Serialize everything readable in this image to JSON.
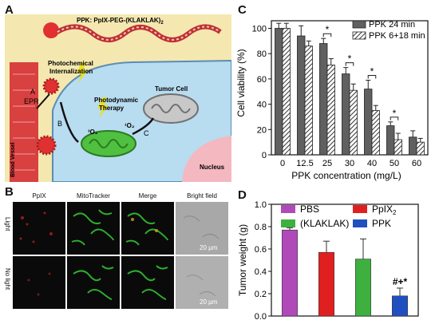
{
  "panelA": {
    "letter": "A",
    "ppk_label": "PPK: PpIX-PEG-(KLAKLAK)",
    "ppk_sub": "2",
    "photochem_1": "Photochemical",
    "photochem_2": "Internalization",
    "blood_vessel": "Blood Vessel",
    "epr": "EPR",
    "step_a": "A",
    "step_b": "B",
    "step_c": "C",
    "pdt_1": "Photodynamic",
    "pdt_2": "Therapy",
    "tumor_cell": "Tumor Cell",
    "nucleus": "Nucleus",
    "o2_triplet": "³O₂",
    "o2_singlet": "¹O₂",
    "colors": {
      "cell": "#b8dcf0",
      "vessel": "#d94040",
      "nucleus": "#f4b8c0",
      "background": "#f4e8b0"
    }
  },
  "panelB": {
    "letter": "B",
    "columns": [
      "PpIX",
      "MitoTracker",
      "Merge",
      "Bright field"
    ],
    "rows": [
      "Light",
      "No light"
    ],
    "scale_bar": "20 μm"
  },
  "panelC": {
    "letter": "C",
    "chart_data": {
      "type": "bar",
      "categories": [
        "0",
        "12.5",
        "25",
        "30",
        "40",
        "50",
        "60"
      ],
      "series": [
        {
          "name": "PPK  24   min",
          "values": [
            100,
            94,
            88,
            64,
            52,
            23,
            14
          ],
          "errors": [
            4,
            8,
            4,
            5,
            7,
            3,
            5
          ],
          "color": "#606060"
        },
        {
          "name": "PPK 6+18 min",
          "values": [
            100,
            86,
            71,
            51,
            35,
            12,
            10
          ],
          "errors": [
            4,
            4,
            5,
            5,
            4,
            5,
            3
          ],
          "pattern": "hatched"
        }
      ],
      "significance": [
        "",
        "",
        "*",
        "*",
        "*",
        "*",
        ""
      ],
      "ylabel": "Cell viability (%)",
      "xlabel": "PPK concentration (mg/L)",
      "ylim": [
        0,
        100
      ],
      "yticks": [
        "0",
        "20",
        "40",
        "60",
        "80",
        "100"
      ]
    }
  },
  "panelD": {
    "letter": "D",
    "chart_data": {
      "type": "bar",
      "categories": [
        "PBS",
        "PpIX",
        "(KLAKLAK)2",
        "PPK"
      ],
      "values": [
        0.77,
        0.51,
        0.57,
        0.18
      ],
      "errors": [
        0.02,
        0.18,
        0.1,
        0.07
      ],
      "order_drawn": [
        "PBS",
        "(KLAKLAK)2",
        "PpIX",
        "PPK"
      ],
      "colors": {
        "PBS": "#b04ab8",
        "(KLAKLAK)2": "#e02020",
        "PpIX": "#3db040",
        "PPK": "#2050c0"
      },
      "legend": [
        "PBS",
        "(KLAKLAK)",
        "PpIX",
        "PPK"
      ],
      "legend_sub": "2",
      "annotation": "#+*",
      "ylabel": "Tumor weight (g)",
      "ylim": [
        0,
        1.0
      ],
      "yticks": [
        "0.0",
        "0.2",
        "0.4",
        "0.6",
        "0.8",
        "1.0"
      ]
    }
  }
}
